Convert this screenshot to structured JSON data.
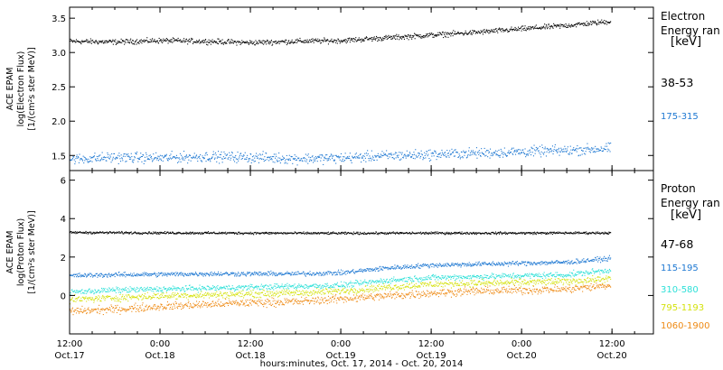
{
  "x_axis": {
    "title": "hours:minutes, Oct. 17, 2014 - Oct. 20, 2014",
    "ticks": [
      {
        "x": 0,
        "time": "12:00",
        "date": "Oct.17"
      },
      {
        "x": 12,
        "time": "0:00",
        "date": "Oct.18"
      },
      {
        "x": 24,
        "time": "12:00",
        "date": "Oct.18"
      },
      {
        "x": 36,
        "time": "0:00",
        "date": "Oct.19"
      },
      {
        "x": 48,
        "time": "12:00",
        "date": "Oct.19"
      },
      {
        "x": 60,
        "time": "0:00",
        "date": "Oct.20"
      },
      {
        "x": 72,
        "time": "12:00",
        "date": "Oct.20"
      }
    ],
    "range": [
      0,
      77.5
    ]
  },
  "chart_data": [
    {
      "type": "scatter",
      "ylabel_lines": [
        "ACE EPAM",
        "log(Electron Flux)",
        "[1/(cm²s ster MeV)]"
      ],
      "ylim": [
        1.28,
        3.66
      ],
      "yticks": [
        1.5,
        2.0,
        2.5,
        3.0,
        3.5
      ],
      "ytick_labels": [
        "1.5",
        "2.0",
        "2.5",
        "3.0",
        "3.5"
      ],
      "legend_title": [
        "Electron",
        "Energy ran"
      ],
      "legend_unit": "[keV]",
      "data_end_x": 71.8,
      "series": [
        {
          "name": "38-53",
          "color": "#000000",
          "noise": 0.025,
          "x": [
            0,
            6,
            12,
            18,
            24,
            30,
            36,
            42,
            48,
            54,
            60,
            66,
            71.8
          ],
          "y": [
            3.17,
            3.16,
            3.18,
            3.17,
            3.15,
            3.17,
            3.18,
            3.22,
            3.26,
            3.3,
            3.35,
            3.4,
            3.46
          ]
        },
        {
          "name": "175-315",
          "color": "#1e78d2",
          "noise": 0.05,
          "x": [
            0,
            6,
            12,
            18,
            24,
            30,
            36,
            42,
            48,
            54,
            60,
            66,
            71.8
          ],
          "y": [
            1.45,
            1.48,
            1.47,
            1.49,
            1.48,
            1.46,
            1.47,
            1.5,
            1.52,
            1.54,
            1.56,
            1.58,
            1.61
          ]
        }
      ]
    },
    {
      "type": "scatter",
      "ylabel_lines": [
        "ACE EPAM",
        "log(Proton Flux)",
        "[1/(cm²s ster MeV)]"
      ],
      "ylim": [
        -2,
        6.5
      ],
      "yticks": [
        0,
        2,
        4,
        6
      ],
      "ytick_labels": [
        "0",
        "2",
        "4",
        "6"
      ],
      "legend_title": [
        "Proton",
        "Energy ran"
      ],
      "legend_unit": "[keV]",
      "data_end_x": 71.8,
      "series": [
        {
          "name": "47-68",
          "color": "#000000",
          "noise": 0.04,
          "x": [
            0,
            12,
            24,
            36,
            48,
            60,
            71.8
          ],
          "y": [
            3.3,
            3.28,
            3.27,
            3.26,
            3.27,
            3.27,
            3.28
          ]
        },
        {
          "name": "115-195",
          "color": "#1e78d2",
          "noise": 0.08,
          "x": [
            0,
            6,
            12,
            18,
            24,
            30,
            36,
            42,
            48,
            54,
            60,
            66,
            71.8
          ],
          "y": [
            1.05,
            1.1,
            1.12,
            1.15,
            1.15,
            1.15,
            1.2,
            1.45,
            1.6,
            1.65,
            1.7,
            1.75,
            1.95
          ]
        },
        {
          "name": "310-580",
          "color": "#2ee0d8",
          "noise": 0.1,
          "x": [
            0,
            6,
            12,
            18,
            24,
            30,
            36,
            42,
            48,
            54,
            60,
            66,
            71.8
          ],
          "y": [
            0.2,
            0.3,
            0.35,
            0.4,
            0.45,
            0.5,
            0.55,
            0.8,
            0.95,
            1.0,
            1.05,
            1.1,
            1.35
          ]
        },
        {
          "name": "795-1193",
          "color": "#d4e20e",
          "noise": 0.12,
          "x": [
            0,
            6,
            12,
            18,
            24,
            30,
            36,
            42,
            48,
            54,
            60,
            66,
            71.8
          ],
          "y": [
            -0.2,
            -0.1,
            0.0,
            0.05,
            0.1,
            0.15,
            0.25,
            0.45,
            0.6,
            0.65,
            0.7,
            0.75,
            0.9
          ]
        },
        {
          "name": "1060-1900",
          "color": "#ee8a14",
          "noise": 0.14,
          "x": [
            0,
            6,
            12,
            18,
            24,
            30,
            36,
            42,
            48,
            54,
            60,
            66,
            71.8
          ],
          "y": [
            -0.8,
            -0.7,
            -0.55,
            -0.45,
            -0.35,
            -0.3,
            -0.15,
            0.0,
            0.15,
            0.25,
            0.3,
            0.35,
            0.55
          ]
        }
      ]
    }
  ]
}
